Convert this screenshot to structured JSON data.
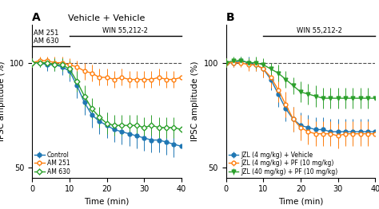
{
  "chart_data": [
    {
      "type": "line",
      "title": "Vehicle + Vehicle",
      "xlabel": "Time (min)",
      "ylabel": "IPSC amplitude (%)",
      "x": [
        0,
        2,
        4,
        6,
        8,
        10,
        12,
        14,
        16,
        18,
        20,
        22,
        24,
        26,
        28,
        30,
        32,
        34,
        36,
        38,
        40
      ],
      "xlim": [
        0,
        40
      ],
      "xticks": [
        0,
        10,
        20,
        30,
        40
      ],
      "ylim": [
        45,
        118
      ],
      "yticks": [
        50,
        100
      ],
      "reference_y": 100,
      "legend": "lower left",
      "annotations": [
        {
          "text": "A"
        },
        {
          "text": "WIN 55,212-2",
          "x": [
            10,
            40
          ]
        },
        {
          "texts": [
            "AM 251",
            "AM 630"
          ],
          "x": [
            0,
            10
          ]
        }
      ],
      "series": [
        {
          "name": "Control",
          "marker": "circle",
          "values": [
            100,
            100,
            99,
            99,
            98,
            96,
            89,
            81,
            75,
            72,
            70,
            68,
            67,
            66,
            65,
            64,
            63,
            63,
            62,
            61,
            60
          ],
          "errors": [
            2,
            2,
            3,
            3,
            4,
            5,
            6,
            6,
            6,
            6,
            6,
            6,
            6,
            6,
            6,
            6,
            6,
            6,
            6,
            6,
            6
          ]
        },
        {
          "name": "AM 251",
          "marker": "open_circle",
          "values": [
            100,
            101,
            101,
            100,
            100,
            99,
            98,
            96,
            95,
            93,
            93,
            92,
            93,
            92,
            92,
            92,
            92,
            93,
            92,
            92,
            93
          ],
          "errors": [
            2,
            2,
            2,
            3,
            3,
            3,
            3,
            4,
            4,
            4,
            4,
            4,
            4,
            4,
            4,
            4,
            4,
            4,
            4,
            4,
            4
          ]
        },
        {
          "name": "AM 630",
          "marker": "open_diamond",
          "values": [
            100,
            100,
            100,
            99,
            99,
            97,
            91,
            84,
            78,
            74,
            71,
            70,
            70,
            70,
            70,
            69,
            70,
            69,
            69,
            69,
            68
          ],
          "errors": [
            2,
            2,
            2,
            3,
            3,
            4,
            5,
            5,
            5,
            5,
            5,
            5,
            5,
            5,
            5,
            5,
            5,
            5,
            5,
            5,
            5
          ]
        }
      ]
    },
    {
      "type": "line",
      "xlabel": "Time (min)",
      "ylabel": "IPSC amplitude (%)",
      "x": [
        0,
        2,
        4,
        6,
        8,
        10,
        12,
        14,
        16,
        18,
        20,
        22,
        24,
        26,
        28,
        30,
        32,
        34,
        36,
        38,
        40
      ],
      "xlim": [
        0,
        40
      ],
      "xticks": [
        0,
        10,
        20,
        30,
        40
      ],
      "ylim": [
        45,
        118
      ],
      "yticks": [
        50,
        100
      ],
      "reference_y": 100,
      "legend": "lower left",
      "annotations": [
        {
          "text": "B"
        },
        {
          "text": "WIN 55,212-2",
          "x": [
            10,
            40
          ]
        }
      ],
      "series": [
        {
          "name": "JZL (4 mg/kg) + Vehicle",
          "marker": "circle",
          "values": [
            100,
            100,
            101,
            100,
            99,
            97,
            92,
            85,
            78,
            73,
            70,
            69,
            68,
            68,
            67,
            67,
            67,
            67,
            67,
            67,
            67
          ],
          "errors": [
            2,
            2,
            2,
            3,
            3,
            4,
            5,
            6,
            6,
            6,
            6,
            6,
            6,
            6,
            6,
            6,
            6,
            6,
            6,
            6,
            6
          ]
        },
        {
          "name": "JZL (4 mg/kg) + PF (10 mg/kg)",
          "marker": "open_circle",
          "values": [
            100,
            100,
            100,
            99,
            99,
            97,
            93,
            87,
            80,
            73,
            69,
            67,
            66,
            66,
            66,
            65,
            66,
            66,
            66,
            66,
            66
          ],
          "errors": [
            2,
            2,
            2,
            3,
            3,
            4,
            5,
            6,
            6,
            6,
            6,
            6,
            6,
            6,
            6,
            6,
            6,
            6,
            6,
            6,
            6
          ]
        },
        {
          "name": "JZL (40 mg/kg) + PF (10 mg/kg)",
          "marker": "triangle_down",
          "values": [
            100,
            101,
            101,
            100,
            100,
            99,
            97,
            95,
            92,
            89,
            86,
            85,
            84,
            83,
            83,
            83,
            83,
            83,
            83,
            83,
            83
          ],
          "errors": [
            2,
            2,
            2,
            2,
            3,
            3,
            3,
            4,
            4,
            4,
            5,
            5,
            5,
            5,
            5,
            5,
            5,
            5,
            5,
            5,
            5
          ]
        }
      ]
    }
  ]
}
